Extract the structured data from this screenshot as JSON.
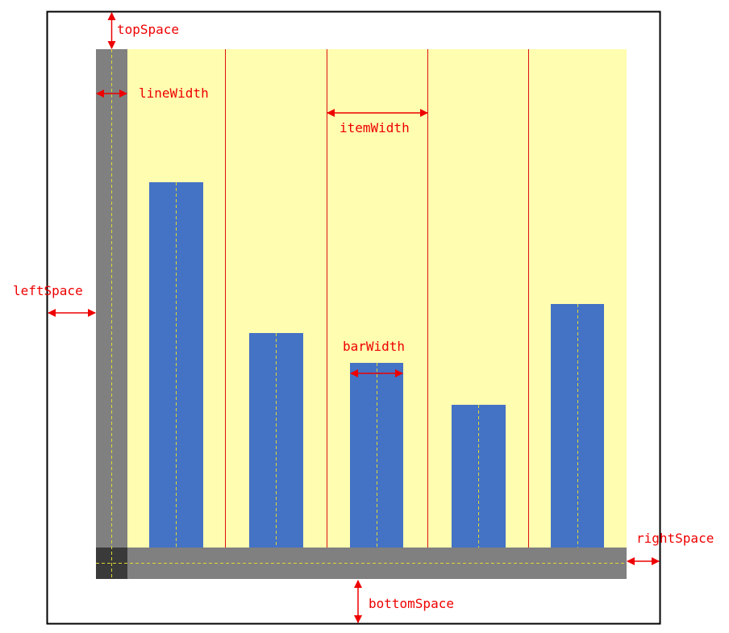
{
  "labels": {
    "top_space": "topSpace",
    "line_width": "lineWidth",
    "item_width": "itemWidth",
    "left_space": "leftSpace",
    "bar_width": "barWidth",
    "right_space": "rightSpace",
    "bottom_space": "bottomSpace"
  },
  "colors": {
    "frame": "#000000",
    "axis": "#808080",
    "axis_corner": "#3a3a3a",
    "plot_background": "#fffdb0",
    "bar": "#4472c4",
    "divider": "#dd1111",
    "annotation": "#ee0000",
    "center_dash": "#e0d832"
  }
}
